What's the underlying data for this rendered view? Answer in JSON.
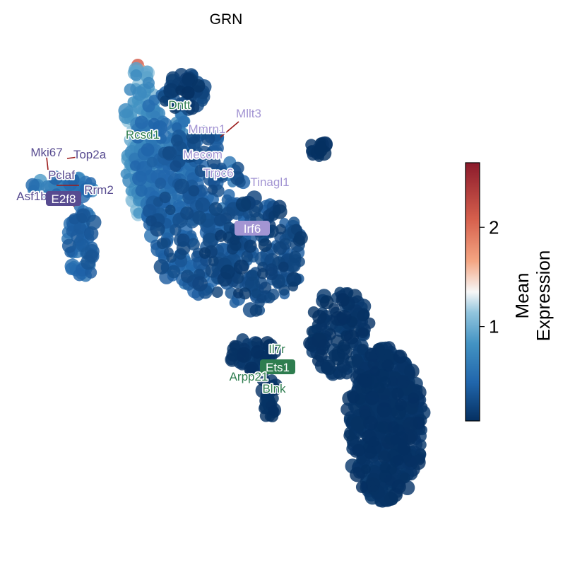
{
  "chart_data": {
    "type": "scatter",
    "subtype": "network graph (gene regulatory network)",
    "title": "GRN",
    "colormap": "RdBu_r",
    "colorbar": {
      "label_lines": [
        "Mean",
        "Expression"
      ],
      "ticks": [
        1,
        2
      ],
      "range": [
        0.05,
        2.65
      ]
    },
    "edge_color": "#c8c8c8",
    "node_label_groups": {
      "purple_dark": "#574b90",
      "purple_light": "#a395d3",
      "green": "#2e7d4f"
    },
    "labels": [
      {
        "text": "GRN",
        "role": "title"
      },
      {
        "text": "Dntt",
        "group": "green"
      },
      {
        "text": "Rcsd1",
        "group": "green"
      },
      {
        "text": "Mllt3",
        "group": "purple_light"
      },
      {
        "text": "Mmrn1",
        "group": "purple_light"
      },
      {
        "text": "Mecom",
        "group": "purple_light"
      },
      {
        "text": "Trpc6",
        "group": "purple_light"
      },
      {
        "text": "Tinagl1",
        "group": "purple_light"
      },
      {
        "text": "Mki67",
        "group": "purple_dark"
      },
      {
        "text": "Top2a",
        "group": "purple_dark"
      },
      {
        "text": "Pclaf",
        "group": "purple_dark"
      },
      {
        "text": "Rrm2",
        "group": "purple_dark"
      },
      {
        "text": "Asf1b",
        "group": "purple_dark"
      },
      {
        "text": "E2f8",
        "group": "purple_dark"
      },
      {
        "text": "Irf6",
        "group": "purple_light"
      },
      {
        "text": "Il7r",
        "group": "green"
      },
      {
        "text": "Ets1",
        "group": "green"
      },
      {
        "text": "Arpp21",
        "group": "green"
      },
      {
        "text": "Blnk",
        "group": "green"
      }
    ]
  }
}
